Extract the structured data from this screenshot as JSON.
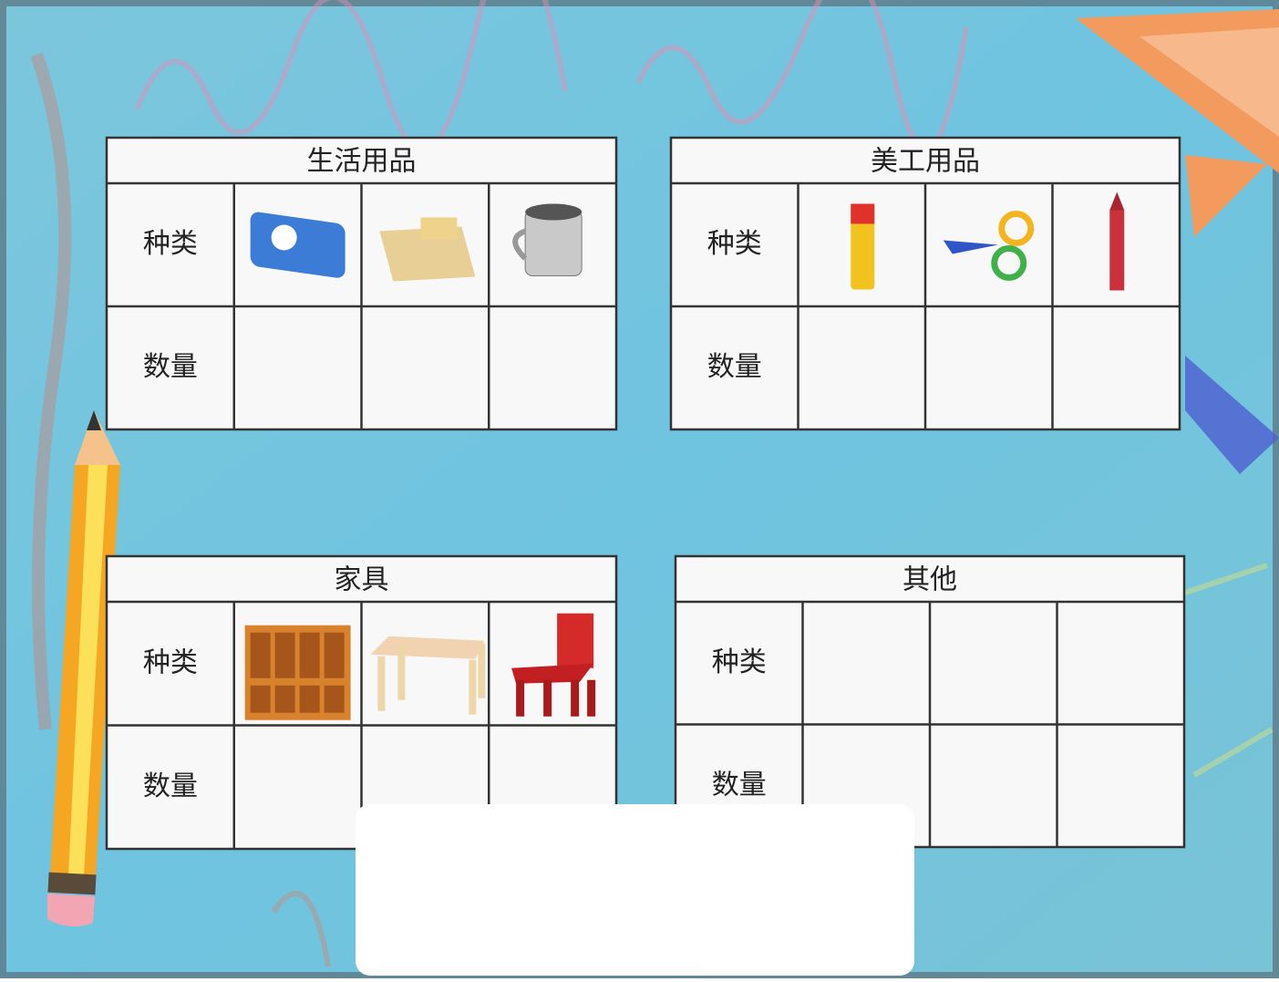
{
  "tables": [
    {
      "title": "生活用品",
      "row_labels": [
        "种类",
        "数量"
      ]
    },
    {
      "title": "美工用品",
      "row_labels": [
        "种类",
        "数量"
      ]
    },
    {
      "title": "家具",
      "row_labels": [
        "种类",
        "数量"
      ]
    },
    {
      "title": "其他",
      "row_labels": [
        "种类",
        "数量"
      ]
    }
  ]
}
